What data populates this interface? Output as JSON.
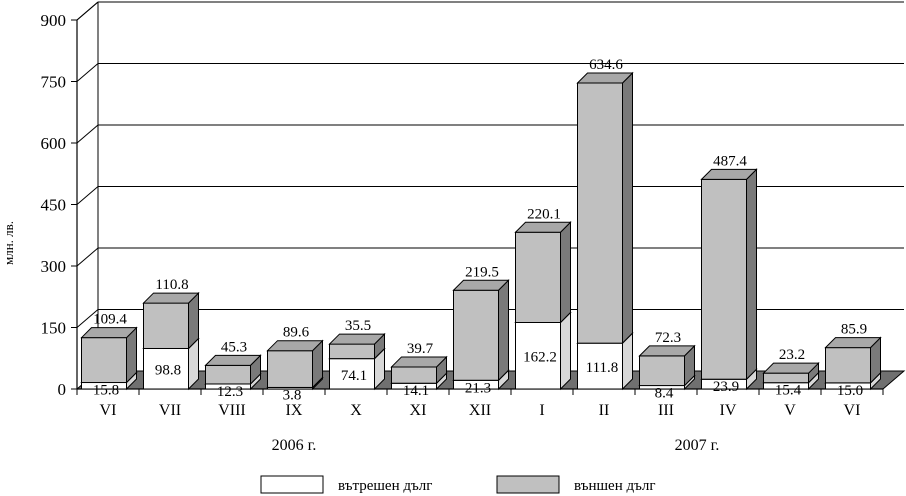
{
  "chart_data": {
    "type": "bar",
    "stacked": true,
    "ylabel": "млн. лв.",
    "ylim": [
      0,
      900
    ],
    "yticks": [
      0,
      150,
      300,
      450,
      600,
      750,
      900
    ],
    "grid": true,
    "categories": [
      "VI",
      "VII",
      "VIII",
      "IX",
      "X",
      "XI",
      "XII",
      "I",
      "II",
      "III",
      "IV",
      "V",
      "VI"
    ],
    "year_groups": [
      {
        "label": "2006 г.",
        "from": 0,
        "to": 6
      },
      {
        "label": "2007 г.",
        "from": 7,
        "to": 12
      }
    ],
    "series": [
      {
        "name": "вътрешен дълг",
        "color": "#ffffff",
        "values": [
          15.8,
          98.8,
          12.3,
          3.8,
          74.1,
          14.1,
          21.3,
          162.2,
          111.8,
          8.4,
          23.9,
          15.4,
          15.0
        ],
        "labels": [
          "15.8",
          "98.8",
          "12.3",
          "3.8",
          "74.1",
          "14.1",
          "21.3",
          "162.2",
          "111.8",
          "8.4",
          "23.9",
          "15.4",
          "15.0"
        ]
      },
      {
        "name": "външен дълг",
        "color": "#c0c0c0",
        "values": [
          109.4,
          110.8,
          45.3,
          89.6,
          35.5,
          39.7,
          219.5,
          220.1,
          634.6,
          72.3,
          487.4,
          23.2,
          85.9
        ],
        "labels": [
          "109.4",
          "110.8",
          "45.3",
          "89.6",
          "35.5",
          "39.7",
          "219.5",
          "220.1",
          "634.6",
          "72.3",
          "487.4",
          "23.2",
          "85.9"
        ]
      }
    ],
    "legend_position": "bottom"
  }
}
